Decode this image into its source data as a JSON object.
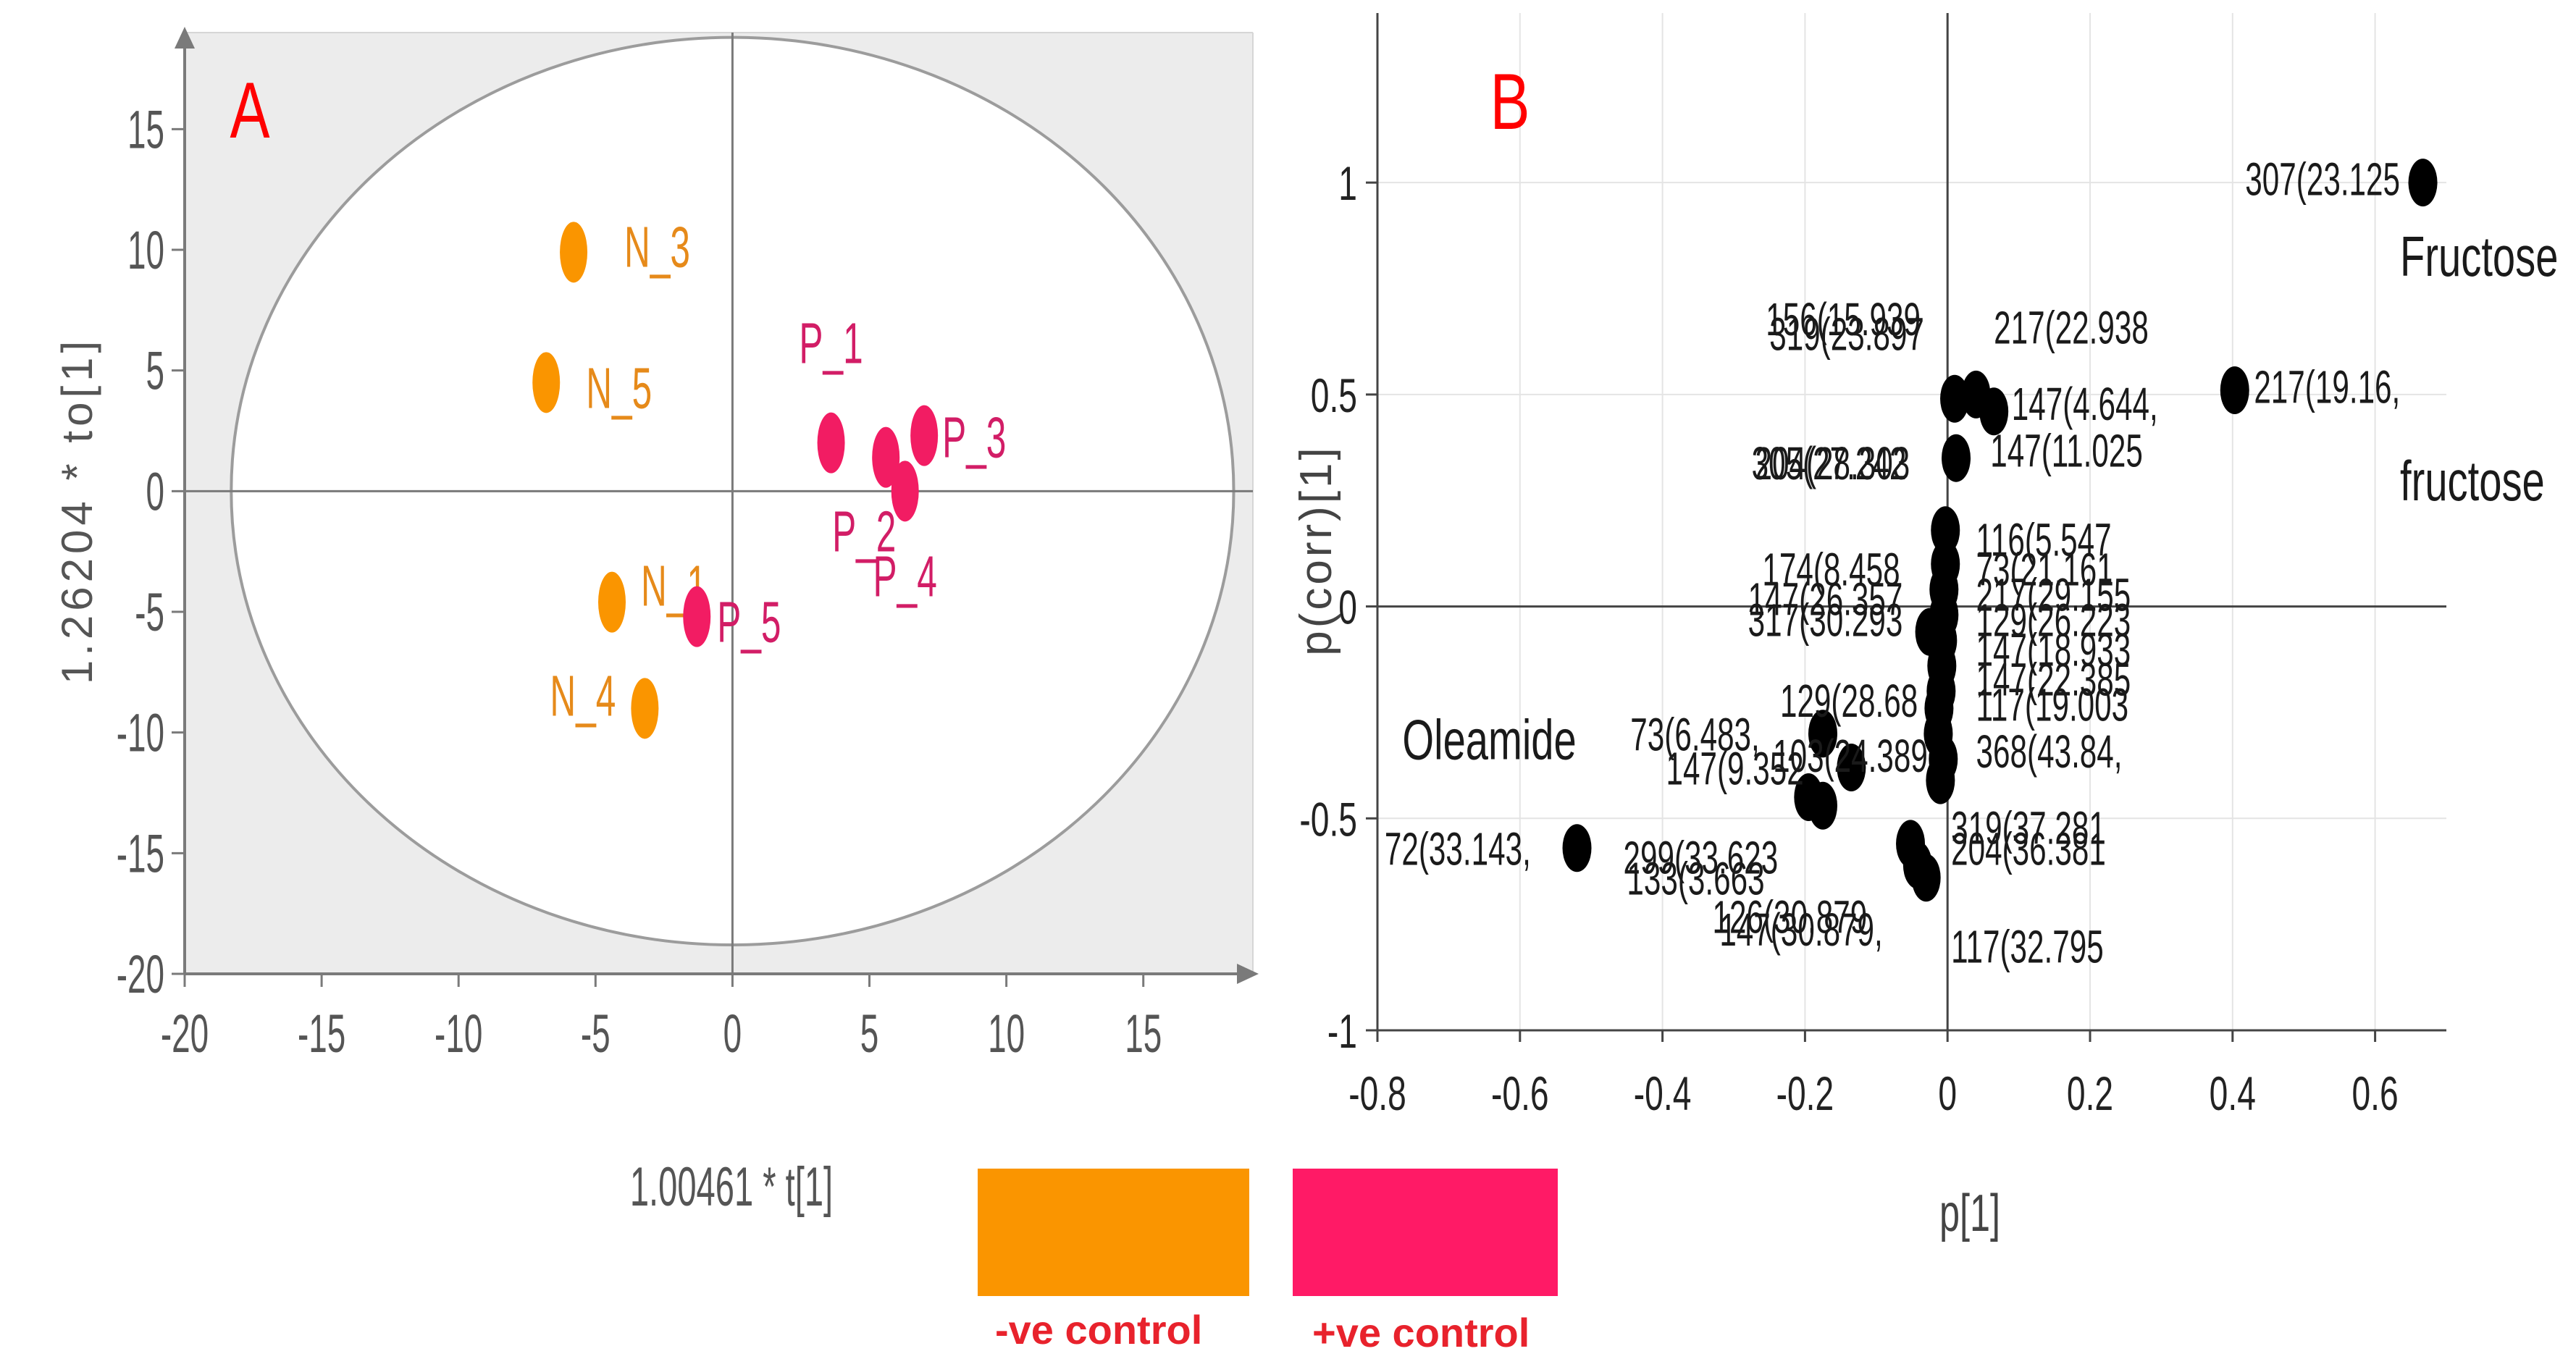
{
  "chart_data": [
    {
      "type": "scatter",
      "panel_label": "A",
      "xlabel": "1.00461 * t[1]",
      "ylabel": "1.26204 * to[1]",
      "xlim": [
        -20,
        19
      ],
      "ylim": [
        -20,
        19
      ],
      "x_ticks": [
        -20,
        -15,
        -10,
        -5,
        0,
        5,
        10,
        15
      ],
      "y_ticks": [
        -20,
        -15,
        -10,
        -5,
        0,
        5,
        10,
        15
      ],
      "ellipse": {
        "rx": 18.3,
        "ry": 18.8
      },
      "points": [
        {
          "label": "N_3",
          "x": -5.8,
          "y": 9.9,
          "group": "neg"
        },
        {
          "label": "N_5",
          "x": -6.8,
          "y": 4.5,
          "group": "neg"
        },
        {
          "label": "N_1",
          "x": -4.4,
          "y": -4.6,
          "group": "neg"
        },
        {
          "label": "N_4",
          "x": -3.2,
          "y": -9.0,
          "group": "neg"
        },
        {
          "label": "P_1",
          "x": 3.6,
          "y": 2.0,
          "group": "pos"
        },
        {
          "label": "P_2",
          "x": 5.6,
          "y": 1.4,
          "group": "pos"
        },
        {
          "label": "P_3",
          "x": 7.0,
          "y": 2.3,
          "group": "pos"
        },
        {
          "label": "P_4",
          "x": 6.3,
          "y": 0.0,
          "group": "pos"
        },
        {
          "label": "P_5",
          "x": -1.3,
          "y": -5.2,
          "group": "pos"
        }
      ]
    },
    {
      "type": "scatter",
      "panel_label": "B",
      "xlabel": "p[1]",
      "ylabel": "p(corr)[1]",
      "xlim": [
        -0.8,
        0.7
      ],
      "ylim": [
        -1,
        1.4
      ],
      "x_ticks": [
        -0.8,
        -0.6,
        -0.4,
        -0.2,
        0,
        0.2,
        0.4,
        0.6
      ],
      "y_ticks": [
        -1,
        -0.5,
        0,
        0.5,
        1
      ],
      "points": [
        {
          "x": 0.667,
          "y": 1.0
        },
        {
          "x": 0.403,
          "y": 0.51
        },
        {
          "x": 0.01,
          "y": 0.49
        },
        {
          "x": 0.04,
          "y": 0.5
        },
        {
          "x": 0.065,
          "y": 0.46
        },
        {
          "x": 0.012,
          "y": 0.35
        },
        {
          "x": -0.003,
          "y": 0.18
        },
        {
          "x": -0.003,
          "y": 0.1
        },
        {
          "x": -0.005,
          "y": 0.04
        },
        {
          "x": -0.005,
          "y": -0.02
        },
        {
          "x": -0.007,
          "y": -0.08
        },
        {
          "x": -0.025,
          "y": -0.06
        },
        {
          "x": -0.008,
          "y": -0.14
        },
        {
          "x": -0.009,
          "y": -0.2
        },
        {
          "x": -0.012,
          "y": -0.24
        },
        {
          "x": -0.013,
          "y": -0.3
        },
        {
          "x": -0.006,
          "y": -0.36
        },
        {
          "x": -0.01,
          "y": -0.41
        },
        {
          "x": -0.175,
          "y": -0.3
        },
        {
          "x": -0.135,
          "y": -0.38
        },
        {
          "x": -0.195,
          "y": -0.45
        },
        {
          "x": -0.175,
          "y": -0.47
        },
        {
          "x": -0.052,
          "y": -0.56
        },
        {
          "x": -0.042,
          "y": -0.61
        },
        {
          "x": -0.03,
          "y": -0.64
        },
        {
          "x": -0.52,
          "y": -0.57
        }
      ],
      "annotations": [
        {
          "text": "307(23.125",
          "x": 0.635,
          "y": 0.97,
          "anchor": "end"
        },
        {
          "text": "Fructose",
          "x": 0.635,
          "y": 0.78,
          "anchor": "start"
        },
        {
          "text": "217(19.16,",
          "x": 0.43,
          "y": 0.48,
          "anchor": "start"
        },
        {
          "text": "fructose",
          "x": 0.635,
          "y": 0.25,
          "anchor": "start"
        },
        {
          "text": "156(15.939",
          "x": -0.255,
          "y": 0.64,
          "anchor": "start"
        },
        {
          "text": "319(23.897",
          "x": -0.25,
          "y": 0.605,
          "anchor": "start"
        },
        {
          "text": "217(22.938",
          "x": 0.065,
          "y": 0.62,
          "anchor": "start"
        },
        {
          "text": "147(4.644,",
          "x": 0.09,
          "y": 0.44,
          "anchor": "start"
        },
        {
          "text": "147(11.025",
          "x": 0.06,
          "y": 0.33,
          "anchor": "start"
        },
        {
          "text": "305(27.242",
          "x": -0.275,
          "y": 0.3,
          "anchor": "start"
        },
        {
          "text": "204(28.303",
          "x": -0.27,
          "y": 0.3,
          "anchor": "start"
        },
        {
          "text": "116(5.547",
          "x": 0.04,
          "y": 0.12,
          "anchor": "start"
        },
        {
          "text": "73(21.161",
          "x": 0.04,
          "y": 0.05,
          "anchor": "start"
        },
        {
          "text": "217(29.155",
          "x": 0.04,
          "y": -0.01,
          "anchor": "start"
        },
        {
          "text": "129(26.223",
          "x": 0.04,
          "y": -0.07,
          "anchor": "start"
        },
        {
          "text": "147(18.933",
          "x": 0.04,
          "y": -0.14,
          "anchor": "start"
        },
        {
          "text": "147(22.385",
          "x": 0.04,
          "y": -0.21,
          "anchor": "start"
        },
        {
          "text": "117(19.003",
          "x": 0.04,
          "y": -0.27,
          "anchor": "start"
        },
        {
          "text": "368(43.84,",
          "x": 0.04,
          "y": -0.38,
          "anchor": "start"
        },
        {
          "text": "174(8.458",
          "x": -0.26,
          "y": 0.05,
          "anchor": "start"
        },
        {
          "text": "147(26.357",
          "x": -0.28,
          "y": -0.02,
          "anchor": "start"
        },
        {
          "text": "317(30.293",
          "x": -0.28,
          "y": -0.07,
          "anchor": "start"
        },
        {
          "text": "129(28.68",
          "x": -0.235,
          "y": -0.26,
          "anchor": "start"
        },
        {
          "text": "73(6.483,",
          "x": -0.445,
          "y": -0.34,
          "anchor": "start"
        },
        {
          "text": "147(9.352",
          "x": -0.395,
          "y": -0.42,
          "anchor": "start"
        },
        {
          "text": "103(24.389",
          "x": -0.245,
          "y": -0.39,
          "anchor": "start"
        },
        {
          "text": "Oleamide",
          "x": -0.765,
          "y": -0.36,
          "anchor": "start"
        },
        {
          "text": "72(33.143,",
          "x": -0.79,
          "y": -0.61,
          "anchor": "start"
        },
        {
          "text": "299(33.623",
          "x": -0.455,
          "y": -0.63,
          "anchor": "start"
        },
        {
          "text": "133(3.663",
          "x": -0.45,
          "y": -0.68,
          "anchor": "start"
        },
        {
          "text": "126(30.879",
          "x": -0.33,
          "y": -0.77,
          "anchor": "start"
        },
        {
          "text": "147(30.879,",
          "x": -0.32,
          "y": -0.8,
          "anchor": "start"
        },
        {
          "text": "319(37.281",
          "x": 0.005,
          "y": -0.56,
          "anchor": "start"
        },
        {
          "text": "204(36.381",
          "x": 0.005,
          "y": -0.61,
          "anchor": "start"
        },
        {
          "text": "117(32.795",
          "x": 0.005,
          "y": -0.84,
          "anchor": "start"
        }
      ]
    }
  ],
  "legend": [
    {
      "label": "-ve control",
      "color": "#fa9500"
    },
    {
      "label": "+ve control",
      "color": "#ff1a66"
    }
  ],
  "colors": {
    "neg": "#fa9500",
    "pos": "#f21c63",
    "neg_text": "#e68a1a",
    "pos_text": "#d21d66",
    "panel_label": "#ff0000",
    "plot_bg_a": "#ececec",
    "black": "#000000"
  }
}
